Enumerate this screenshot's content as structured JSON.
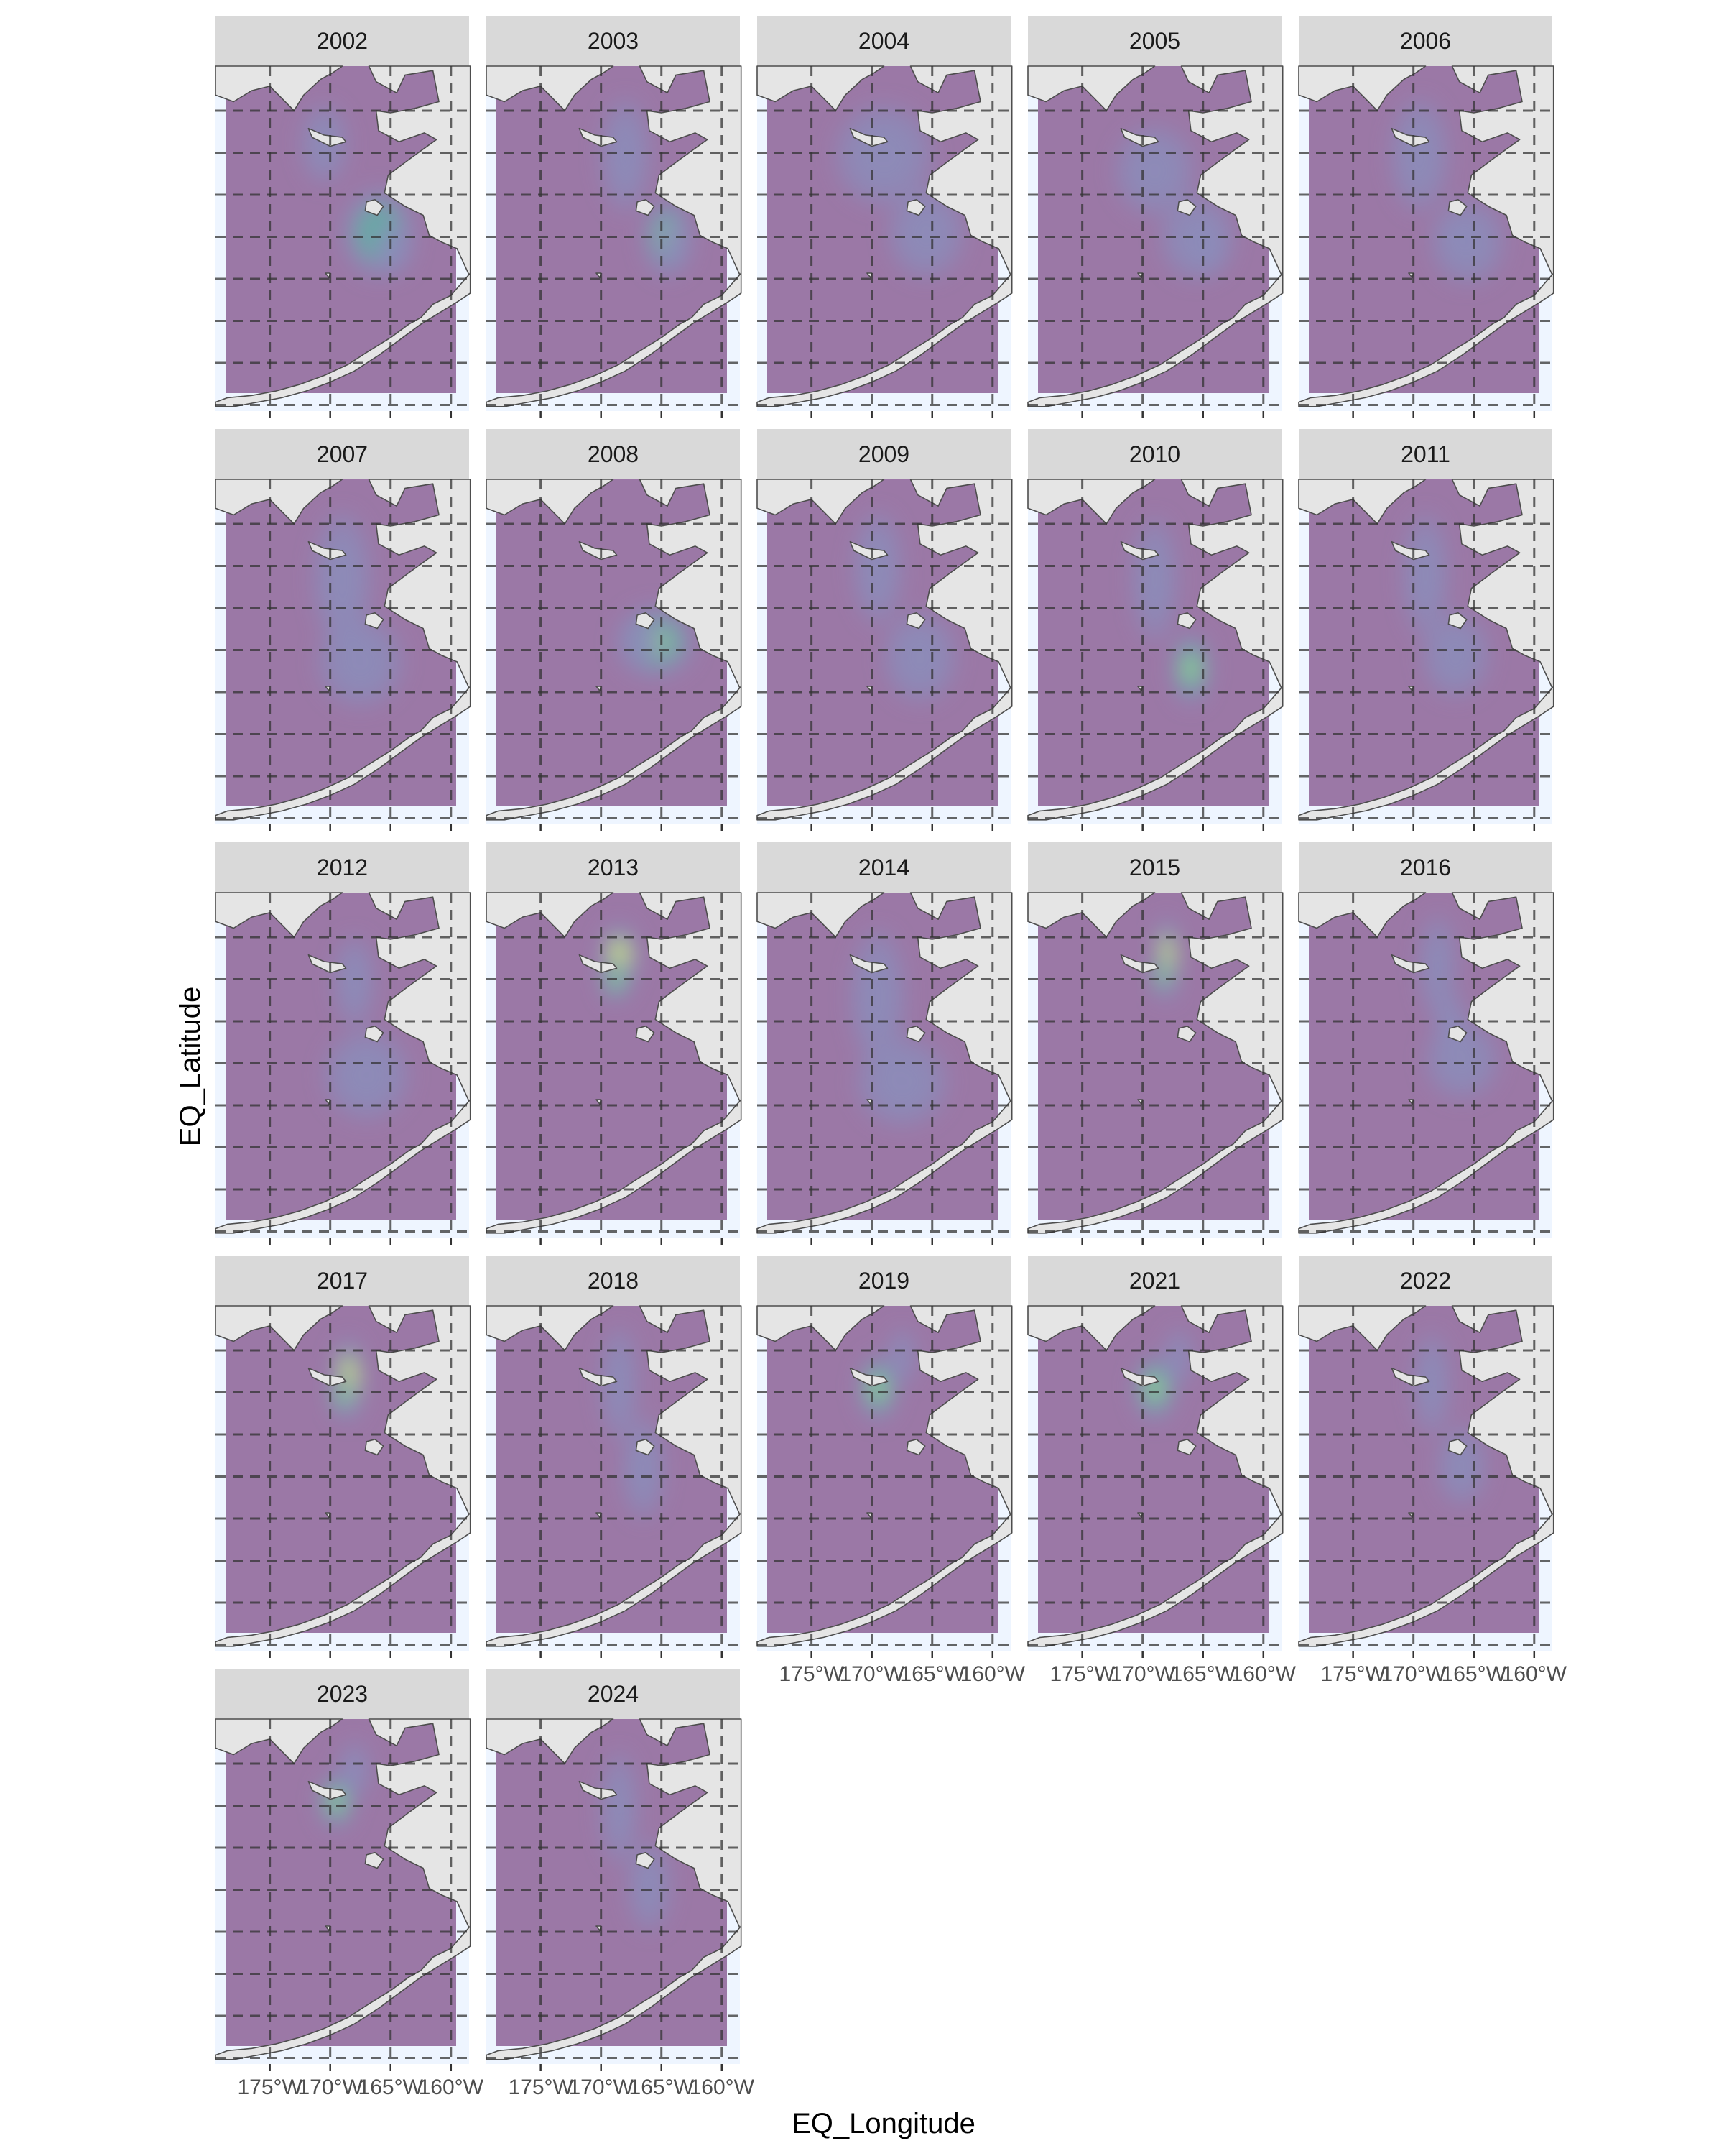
{
  "chart_data": {
    "type": "heatmap",
    "subtype": "faceted 2D density map",
    "xlabel": "EQ_Longitude",
    "ylabel": "EQ_Latitude",
    "x_tick_labels": [
      "175°W",
      "170°W",
      "165°W",
      "160°W"
    ],
    "x_ticks": [
      -175,
      -170,
      -165,
      -160
    ],
    "xlim": [
      -179.5,
      -158.5
    ],
    "ylim": [
      51.0,
      66.5
    ],
    "grid": "dashed major gridlines",
    "colors": {
      "ocean": "#9b78a6",
      "low_density": "#8c8cba",
      "mid_density": "#5ab4a0",
      "high_density": "#f1f075",
      "land": "#e5e5e5",
      "coast": "#4d4d4d",
      "strip": "#d9d9d9",
      "panel_bg": "#eef5ff",
      "grid": "#333333"
    },
    "facets": [
      {
        "year": "2002",
        "density": [
          {
            "lon": -170.5,
            "lat": 63.0,
            "sx": 1.5,
            "sy": 1.4,
            "w": 0.5
          },
          {
            "lon": -166.0,
            "lat": 59.0,
            "sx": 2.4,
            "sy": 1.6,
            "w": 0.8
          },
          {
            "lon": -164.8,
            "lat": 58.3,
            "sx": 1.2,
            "sy": 0.9,
            "w": 0.4
          }
        ]
      },
      {
        "year": "2003",
        "density": [
          {
            "lon": -168.0,
            "lat": 62.5,
            "sx": 1.6,
            "sy": 2.0,
            "w": 0.5
          },
          {
            "lon": -164.5,
            "lat": 58.8,
            "sx": 1.6,
            "sy": 1.4,
            "w": 1.0
          },
          {
            "lon": -164.0,
            "lat": 58.5,
            "sx": 1.0,
            "sy": 0.9,
            "w": 0.6
          }
        ]
      },
      {
        "year": "2004",
        "density": [
          {
            "lon": -169.0,
            "lat": 62.5,
            "sx": 3.2,
            "sy": 1.8,
            "w": 0.5
          },
          {
            "lon": -165.5,
            "lat": 59.0,
            "sx": 2.5,
            "sy": 1.6,
            "w": 0.5
          }
        ]
      },
      {
        "year": "2005",
        "density": [
          {
            "lon": -169.0,
            "lat": 61.8,
            "sx": 2.6,
            "sy": 1.6,
            "w": 0.5
          },
          {
            "lon": -165.5,
            "lat": 58.8,
            "sx": 2.4,
            "sy": 1.5,
            "w": 0.6
          },
          {
            "lon": -164.5,
            "lat": 58.3,
            "sx": 1.2,
            "sy": 0.9,
            "w": 0.3
          }
        ]
      },
      {
        "year": "2006",
        "density": [
          {
            "lon": -169.5,
            "lat": 62.5,
            "sx": 1.9,
            "sy": 2.0,
            "w": 0.5
          },
          {
            "lon": -165.5,
            "lat": 58.6,
            "sx": 2.4,
            "sy": 1.5,
            "w": 0.6
          },
          {
            "lon": -166.5,
            "lat": 58.8,
            "sx": 0.8,
            "sy": 0.7,
            "w": 0.4
          }
        ]
      },
      {
        "year": "2007",
        "density": [
          {
            "lon": -169.0,
            "lat": 62.0,
            "sx": 1.9,
            "sy": 2.4,
            "w": 0.5
          },
          {
            "lon": -167.5,
            "lat": 58.3,
            "sx": 2.8,
            "sy": 1.6,
            "w": 0.6
          }
        ]
      },
      {
        "year": "2008",
        "density": [
          {
            "lon": -165.5,
            "lat": 59.2,
            "sx": 2.6,
            "sy": 1.3,
            "w": 1.1
          },
          {
            "lon": -166.5,
            "lat": 59.2,
            "sx": 1.3,
            "sy": 0.8,
            "w": 0.6
          }
        ]
      },
      {
        "year": "2009",
        "density": [
          {
            "lon": -169.5,
            "lat": 62.5,
            "sx": 1.6,
            "sy": 2.0,
            "w": 0.6
          },
          {
            "lon": -166.0,
            "lat": 58.5,
            "sx": 2.4,
            "sy": 1.6,
            "w": 0.6
          }
        ]
      },
      {
        "year": "2010",
        "density": [
          {
            "lon": -169.0,
            "lat": 62.0,
            "sx": 1.5,
            "sy": 2.2,
            "w": 0.5
          },
          {
            "lon": -166.0,
            "lat": 58.0,
            "sx": 1.3,
            "sy": 1.3,
            "w": 0.9
          }
        ]
      },
      {
        "year": "2011",
        "density": [
          {
            "lon": -169.0,
            "lat": 62.2,
            "sx": 1.5,
            "sy": 2.2,
            "w": 0.5
          },
          {
            "lon": -166.5,
            "lat": 58.6,
            "sx": 2.2,
            "sy": 1.5,
            "w": 0.6
          }
        ]
      },
      {
        "year": "2012",
        "density": [
          {
            "lon": -168.0,
            "lat": 62.5,
            "sx": 1.3,
            "sy": 1.6,
            "w": 0.5
          },
          {
            "lon": -167.0,
            "lat": 58.3,
            "sx": 2.8,
            "sy": 1.6,
            "w": 0.6
          }
        ]
      },
      {
        "year": "2013",
        "density": [
          {
            "lon": -168.5,
            "lat": 63.6,
            "sx": 1.3,
            "sy": 1.2,
            "w": 1.4
          },
          {
            "lon": -168.8,
            "lat": 62.6,
            "sx": 1.0,
            "sy": 0.8,
            "w": 1.0
          }
        ]
      },
      {
        "year": "2014",
        "density": [
          {
            "lon": -169.5,
            "lat": 61.8,
            "sx": 1.8,
            "sy": 2.4,
            "w": 0.5
          },
          {
            "lon": -167.5,
            "lat": 58.0,
            "sx": 3.0,
            "sy": 1.6,
            "w": 0.5
          }
        ]
      },
      {
        "year": "2015",
        "density": [
          {
            "lon": -168.0,
            "lat": 63.5,
            "sx": 0.9,
            "sy": 1.5,
            "w": 1.5
          },
          {
            "lon": -168.4,
            "lat": 62.8,
            "sx": 0.7,
            "sy": 0.8,
            "w": 1.1
          }
        ]
      },
      {
        "year": "2016",
        "density": [
          {
            "lon": -168.0,
            "lat": 63.2,
            "sx": 1.2,
            "sy": 1.8,
            "w": 0.6
          },
          {
            "lon": -166.0,
            "lat": 59.0,
            "sx": 2.4,
            "sy": 1.4,
            "w": 0.7
          },
          {
            "lon": -167.0,
            "lat": 60.8,
            "sx": 1.0,
            "sy": 1.0,
            "w": 0.4
          }
        ]
      },
      {
        "year": "2017",
        "density": [
          {
            "lon": -168.5,
            "lat": 63.2,
            "sx": 1.1,
            "sy": 1.5,
            "w": 1.4
          },
          {
            "lon": -169.0,
            "lat": 62.5,
            "sx": 0.8,
            "sy": 0.8,
            "w": 1.0
          }
        ]
      },
      {
        "year": "2018",
        "density": [
          {
            "lon": -168.5,
            "lat": 63.0,
            "sx": 1.2,
            "sy": 2.0,
            "w": 0.5
          },
          {
            "lon": -166.5,
            "lat": 59.2,
            "sx": 1.4,
            "sy": 1.8,
            "w": 0.5
          }
        ]
      },
      {
        "year": "2019",
        "density": [
          {
            "lon": -169.5,
            "lat": 62.8,
            "sx": 1.3,
            "sy": 1.2,
            "w": 1.2
          },
          {
            "lon": -167.5,
            "lat": 64.2,
            "sx": 0.9,
            "sy": 1.0,
            "w": 0.6
          }
        ]
      },
      {
        "year": "2021",
        "density": [
          {
            "lon": -169.0,
            "lat": 62.8,
            "sx": 1.4,
            "sy": 1.2,
            "w": 1.1
          },
          {
            "lon": -167.0,
            "lat": 64.2,
            "sx": 0.9,
            "sy": 1.0,
            "w": 0.6
          }
        ]
      },
      {
        "year": "2022",
        "density": [
          {
            "lon": -168.5,
            "lat": 63.0,
            "sx": 1.2,
            "sy": 1.8,
            "w": 0.6
          },
          {
            "lon": -166.0,
            "lat": 59.3,
            "sx": 1.6,
            "sy": 1.4,
            "w": 0.6
          }
        ]
      },
      {
        "year": "2023",
        "density": [
          {
            "lon": -169.5,
            "lat": 62.8,
            "sx": 1.2,
            "sy": 1.0,
            "w": 1.2
          },
          {
            "lon": -168.0,
            "lat": 64.2,
            "sx": 1.0,
            "sy": 1.0,
            "w": 0.7
          }
        ]
      },
      {
        "year": "2024",
        "density": [
          {
            "lon": -168.5,
            "lat": 62.5,
            "sx": 1.2,
            "sy": 2.0,
            "w": 0.5
          },
          {
            "lon": -166.0,
            "lat": 59.0,
            "sx": 1.4,
            "sy": 1.6,
            "w": 0.5
          }
        ]
      }
    ]
  }
}
